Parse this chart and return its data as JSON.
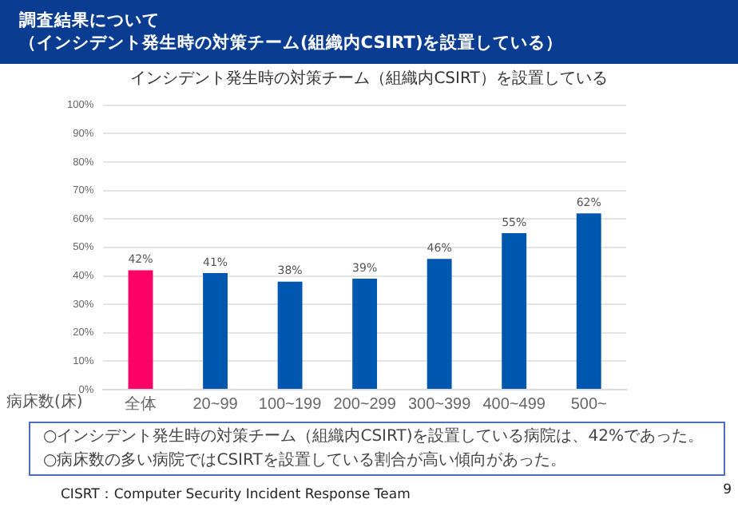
{
  "chart_data": {
    "type": "bar",
    "title": "インシデント発生時の対策チーム（組織内CSIRT）を設置している",
    "xlabel": "病床数(床)",
    "categories": [
      "全体",
      "20~99",
      "100~199",
      "200~299",
      "300~399",
      "400~499",
      "500~"
    ],
    "values": [
      42,
      41,
      38,
      39,
      46,
      55,
      62
    ],
    "value_labels": [
      "42%",
      "41%",
      "38%",
      "39%",
      "46%",
      "55%",
      "62%"
    ],
    "colors": [
      "#ff0066",
      "#0057b0",
      "#0057b0",
      "#0057b0",
      "#0057b0",
      "#0057b0",
      "#0057b0"
    ],
    "ylim": [
      0,
      100
    ],
    "yticks": [
      {
        "value": 0,
        "label": "0%"
      },
      {
        "value": 10,
        "label": "10%"
      },
      {
        "value": 20,
        "label": "20%"
      },
      {
        "value": 30,
        "label": "30%"
      },
      {
        "value": 40,
        "label": "40%"
      },
      {
        "value": 50,
        "label": "50%"
      },
      {
        "value": 60,
        "label": "60%"
      },
      {
        "value": 70,
        "label": "70%"
      },
      {
        "value": 80,
        "label": "80%"
      },
      {
        "value": 90,
        "label": "90%"
      },
      {
        "value": 100,
        "label": "100%"
      }
    ],
    "grid": "y",
    "legend": false,
    "annotations": [
      "調査結果について",
      "（インシデント発生時の対策チーム(組織内CSIRT)を設置している）",
      "○インシデント発生時の対策チーム（組織内CSIRT)を設置している病院は、42%であった。",
      "○病床数の多い病院ではCSIRTを設置している割合が高い傾向があった。",
      "CISRT：Computer Security Incident Response Team",
      "9"
    ]
  }
}
